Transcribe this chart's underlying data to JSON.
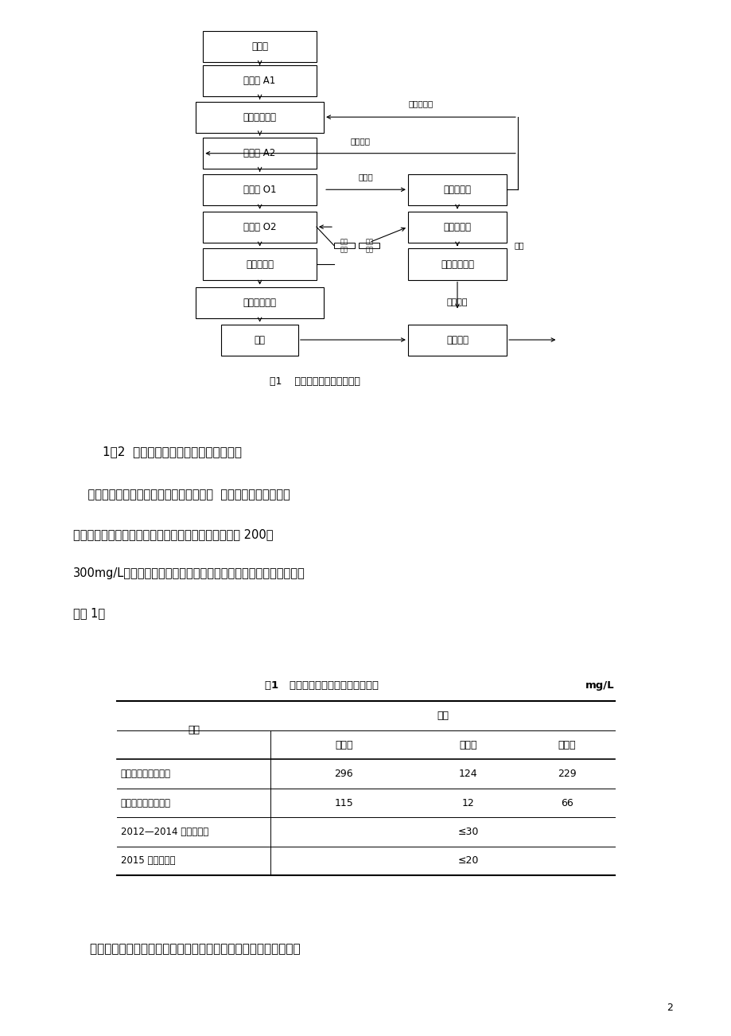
{
  "page_bg": "#ffffff",
  "content_bg": "#ffffff",
  "page_width": 9.2,
  "page_height": 13.02,
  "flowchart_caption": "图1    原焦化废水处理工艺流程",
  "section_title": "1．2  焦化废水处理装置进出水总氮现状",
  "para1": "    焦化废水处理装置总氮不能稳定达标排放  对焦化废水处理站月报",
  "para2": "表进行分析，废水站运行过程中调节池出水总氮浓度为 200～",
  "para3": "300mg/L，经过处理后的总氮不能稳定达到排放标准要求，具体数据",
  "para4": "见表 1。",
  "table_title": "表1   焦化废水处理站各段水质情况表",
  "table_unit": "mg/L",
  "col_header_0": "项目",
  "col_header_1": "最大值",
  "col_header_2": "最小值",
  "col_header_3": "平均值",
  "subheader": "总氮",
  "row0": [
    "焦化废水装置调节池",
    "296",
    "124",
    "229"
  ],
  "row1": [
    "焦化废水装置外排水",
    "115",
    "12",
    "66"
  ],
  "row2": [
    "2012—2014 年排放标准",
    "",
    "≤30",
    ""
  ],
  "row3": [
    "2015 年排放标准",
    "",
    "≤20",
    ""
  ],
  "footer_text": "    原酚氰废水处理站缺氧池采用的是生物膜法。对于生物膜法，填料",
  "page_number": "2"
}
